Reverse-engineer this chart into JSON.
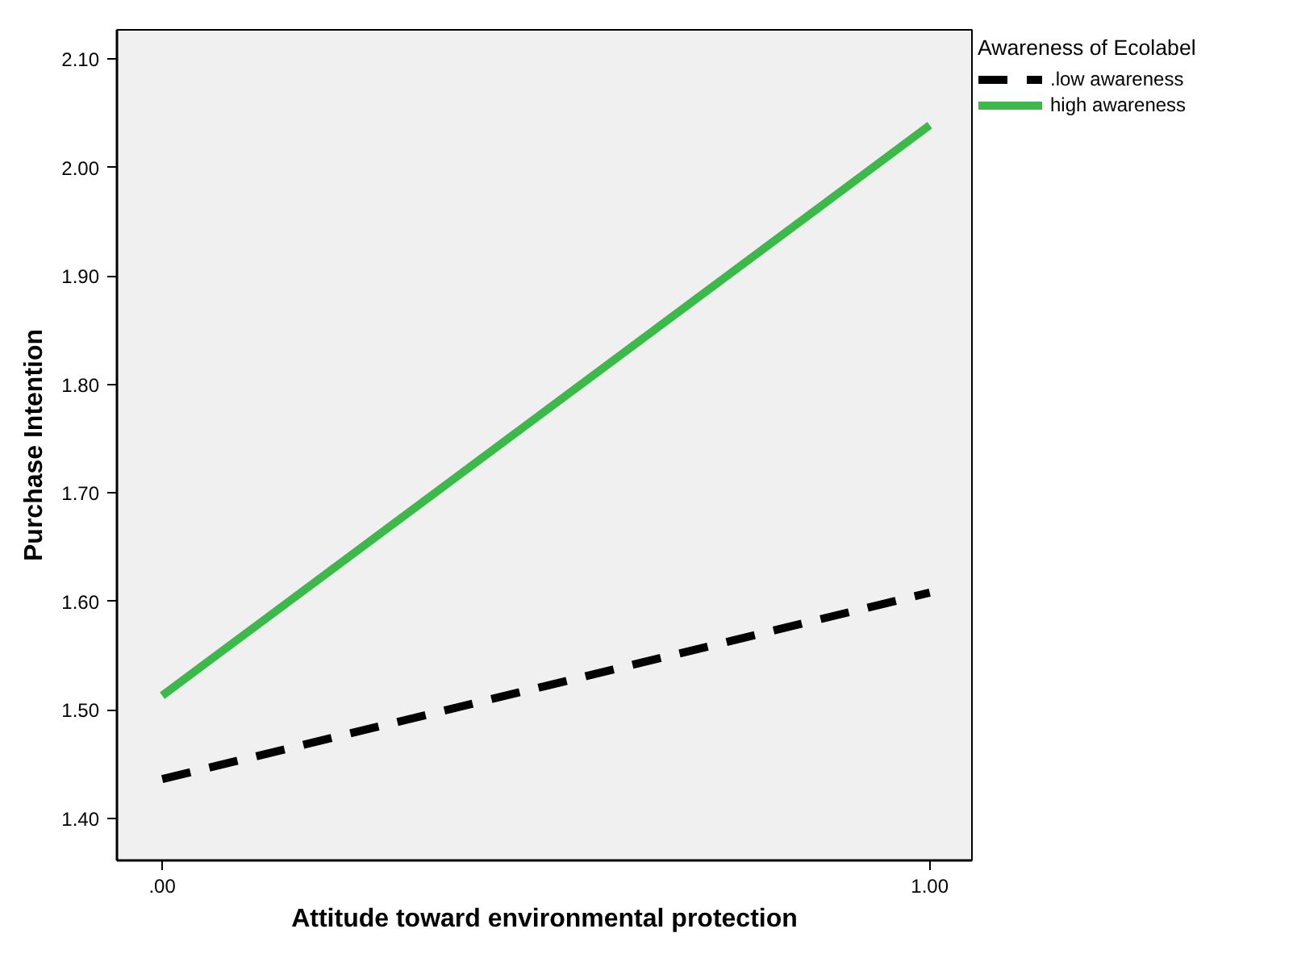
{
  "chart_data": {
    "type": "line",
    "xlabel": "Attitude toward environmental protection",
    "ylabel": "Purchase Intention",
    "legend_title": "Awareness of Ecolabel",
    "x": [
      0,
      1
    ],
    "series": [
      {
        "name": ".low awareness",
        "color": "#000000",
        "values": [
          1.436,
          1.608
        ],
        "line_style": "dashed"
      },
      {
        "name": "high awareness",
        "color": "#3cb94a",
        "values": [
          1.513,
          2.039
        ],
        "line_style": "solid"
      }
    ],
    "xlim": [
      -0.059,
      1.055
    ],
    "ylim": [
      1.361,
      2.127
    ],
    "xticks": [
      {
        "value": 0,
        "label": ".00"
      },
      {
        "value": 1,
        "label": "1.00"
      }
    ],
    "yticks": [
      {
        "value": 1.4,
        "label": "1.40"
      },
      {
        "value": 1.5,
        "label": "1.50"
      },
      {
        "value": 1.6,
        "label": "1.60"
      },
      {
        "value": 1.7,
        "label": "1.70"
      },
      {
        "value": 1.8,
        "label": "1.80"
      },
      {
        "value": 1.9,
        "label": "1.90"
      },
      {
        "value": 2.0,
        "label": "2.00"
      },
      {
        "value": 2.1,
        "label": "2.10"
      }
    ],
    "grid": false,
    "legend": "top right",
    "marker": "none"
  }
}
